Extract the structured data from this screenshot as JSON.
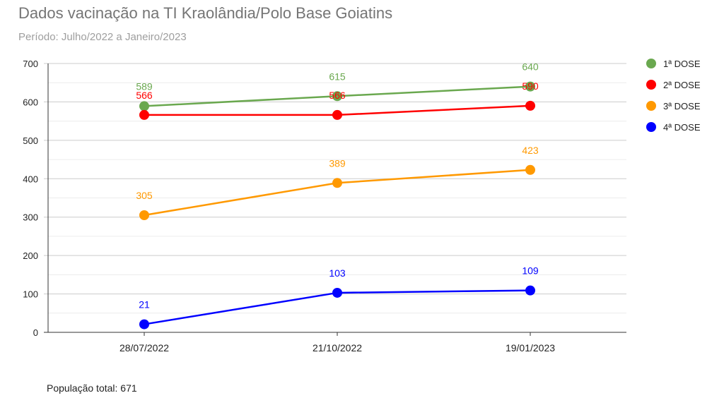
{
  "chart_data": {
    "type": "line",
    "title": "Dados vacinação na TI Kraolândia/Polo Base Goiatins",
    "subtitle": "Período: Julho/2022 a Janeiro/2023",
    "categories": [
      "28/07/2022",
      "21/10/2022",
      "19/01/2023"
    ],
    "ylim": [
      0,
      700
    ],
    "yticks": [
      "0",
      "100",
      "200",
      "300",
      "400",
      "500",
      "600",
      "700"
    ],
    "grid": true,
    "legend_position": "right",
    "series": [
      {
        "name": "1ª DOSE",
        "color": "#6aa84f",
        "values": [
          589,
          615,
          640
        ]
      },
      {
        "name": "2ª DOSE",
        "color": "#ff0000",
        "values": [
          566,
          566,
          590
        ]
      },
      {
        "name": "3ª DOSE",
        "color": "#ff9900",
        "values": [
          305,
          389,
          423
        ]
      },
      {
        "name": "4ª DOSE",
        "color": "#0000ff",
        "values": [
          21,
          103,
          109
        ]
      }
    ],
    "footnote": "População total: 671"
  }
}
